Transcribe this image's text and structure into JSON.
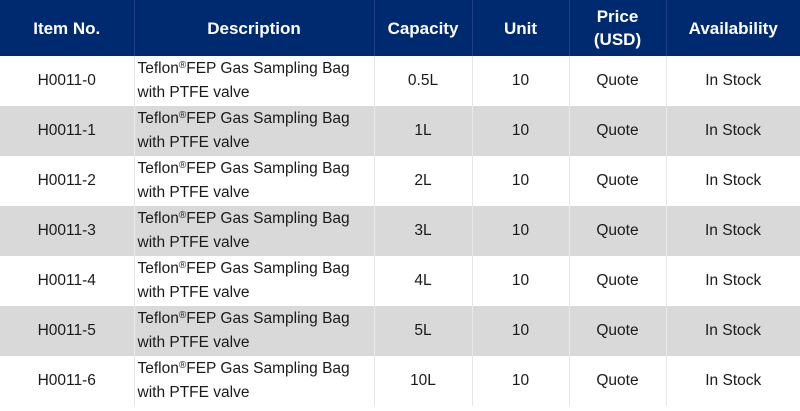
{
  "table": {
    "headers": {
      "item_no": "Item No.",
      "description": "Description",
      "capacity": "Capacity",
      "unit": "Unit",
      "price_line1": "Price",
      "price_line2": "(USD)",
      "availability": "Availability"
    },
    "colors": {
      "header_bg": "#002a6f",
      "header_text": "#ffffff",
      "stripe_bg": "#d9d9d9",
      "row_bg": "#ffffff"
    },
    "rows": [
      {
        "item_no": "H0011-0",
        "desc_brand": "Teflon",
        "desc_reg": "®",
        "desc_rest": "FEP Gas Sampling Bag",
        "desc_line2": "with PTFE valve",
        "capacity": "0.5L",
        "unit": "10",
        "price": "Quote",
        "availability": "In Stock"
      },
      {
        "item_no": "H0011-1",
        "desc_brand": "Teflon",
        "desc_reg": "®",
        "desc_rest": "FEP Gas Sampling Bag",
        "desc_line2": "with PTFE valve",
        "capacity": "1L",
        "unit": "10",
        "price": "Quote",
        "availability": "In Stock"
      },
      {
        "item_no": "H0011-2",
        "desc_brand": "Teflon",
        "desc_reg": "®",
        "desc_rest": "FEP Gas Sampling Bag",
        "desc_line2": "with PTFE valve",
        "capacity": "2L",
        "unit": "10",
        "price": "Quote",
        "availability": "In Stock"
      },
      {
        "item_no": "H0011-3",
        "desc_brand": "Teflon",
        "desc_reg": "®",
        "desc_rest": "FEP Gas Sampling Bag",
        "desc_line2": "with PTFE valve",
        "capacity": "3L",
        "unit": "10",
        "price": "Quote",
        "availability": "In Stock"
      },
      {
        "item_no": "H0011-4",
        "desc_brand": "Teflon",
        "desc_reg": "®",
        "desc_rest": "FEP Gas Sampling Bag",
        "desc_line2": "with PTFE valve",
        "capacity": "4L",
        "unit": "10",
        "price": "Quote",
        "availability": "In Stock"
      },
      {
        "item_no": "H0011-5",
        "desc_brand": "Teflon",
        "desc_reg": "®",
        "desc_rest": "FEP Gas Sampling Bag",
        "desc_line2": "with PTFE valve",
        "capacity": "5L",
        "unit": "10",
        "price": "Quote",
        "availability": "In Stock"
      },
      {
        "item_no": "H0011-6",
        "desc_brand": "Teflon",
        "desc_reg": "®",
        "desc_rest": "FEP Gas Sampling Bag",
        "desc_line2": "with PTFE valve",
        "capacity": "10L",
        "unit": "10",
        "price": "Quote",
        "availability": "In Stock"
      }
    ]
  }
}
